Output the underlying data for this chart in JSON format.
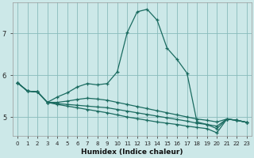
{
  "xlabel": "Humidex (Indice chaleur)",
  "background_color": "#cce8e8",
  "grid_color": "#88bbbb",
  "line_color": "#1a6b60",
  "xlim": [
    -0.5,
    23.5
  ],
  "ylim": [
    4.55,
    7.75
  ],
  "yticks": [
    5,
    6,
    7
  ],
  "xticks": [
    0,
    1,
    2,
    3,
    4,
    5,
    6,
    7,
    8,
    9,
    10,
    11,
    12,
    13,
    14,
    15,
    16,
    17,
    18,
    19,
    20,
    21,
    22,
    23
  ],
  "lines": [
    {
      "x": [
        0,
        1,
        2,
        3,
        4,
        5,
        6,
        7,
        8,
        9,
        10,
        11,
        12,
        13,
        14,
        15,
        16,
        17,
        18,
        19,
        20,
        21,
        22,
        23
      ],
      "y": [
        5.82,
        5.62,
        5.6,
        5.35,
        5.48,
        5.58,
        5.72,
        5.8,
        5.77,
        5.8,
        6.08,
        7.02,
        7.52,
        7.58,
        7.32,
        6.65,
        6.38,
        6.05,
        4.88,
        4.82,
        4.72,
        4.95,
        4.92,
        4.87
      ]
    },
    {
      "x": [
        0,
        1,
        2,
        3,
        4,
        5,
        6,
        7,
        8,
        9,
        10,
        11,
        12,
        13,
        14,
        15,
        16,
        17,
        18,
        19,
        20,
        21,
        22,
        23
      ],
      "y": [
        5.82,
        5.62,
        5.6,
        5.35,
        5.35,
        5.38,
        5.42,
        5.45,
        5.43,
        5.4,
        5.35,
        5.3,
        5.25,
        5.2,
        5.15,
        5.1,
        5.05,
        5.0,
        4.95,
        4.92,
        4.88,
        4.95,
        4.92,
        4.87
      ]
    },
    {
      "x": [
        0,
        1,
        2,
        3,
        4,
        5,
        6,
        7,
        8,
        9,
        10,
        11,
        12,
        13,
        14,
        15,
        16,
        17,
        18,
        19,
        20,
        21,
        22,
        23
      ],
      "y": [
        5.82,
        5.62,
        5.6,
        5.35,
        5.32,
        5.3,
        5.28,
        5.26,
        5.24,
        5.22,
        5.18,
        5.14,
        5.1,
        5.06,
        5.02,
        4.98,
        4.94,
        4.9,
        4.85,
        4.82,
        4.78,
        4.95,
        4.92,
        4.87
      ]
    },
    {
      "x": [
        0,
        1,
        2,
        3,
        4,
        5,
        6,
        7,
        8,
        9,
        10,
        11,
        12,
        13,
        14,
        15,
        16,
        17,
        18,
        19,
        20,
        21,
        22,
        23
      ],
      "y": [
        5.82,
        5.62,
        5.6,
        5.35,
        5.3,
        5.26,
        5.22,
        5.18,
        5.14,
        5.1,
        5.05,
        5.0,
        4.96,
        4.92,
        4.88,
        4.85,
        4.82,
        4.78,
        4.75,
        4.72,
        4.62,
        4.95,
        4.92,
        4.87
      ]
    }
  ]
}
